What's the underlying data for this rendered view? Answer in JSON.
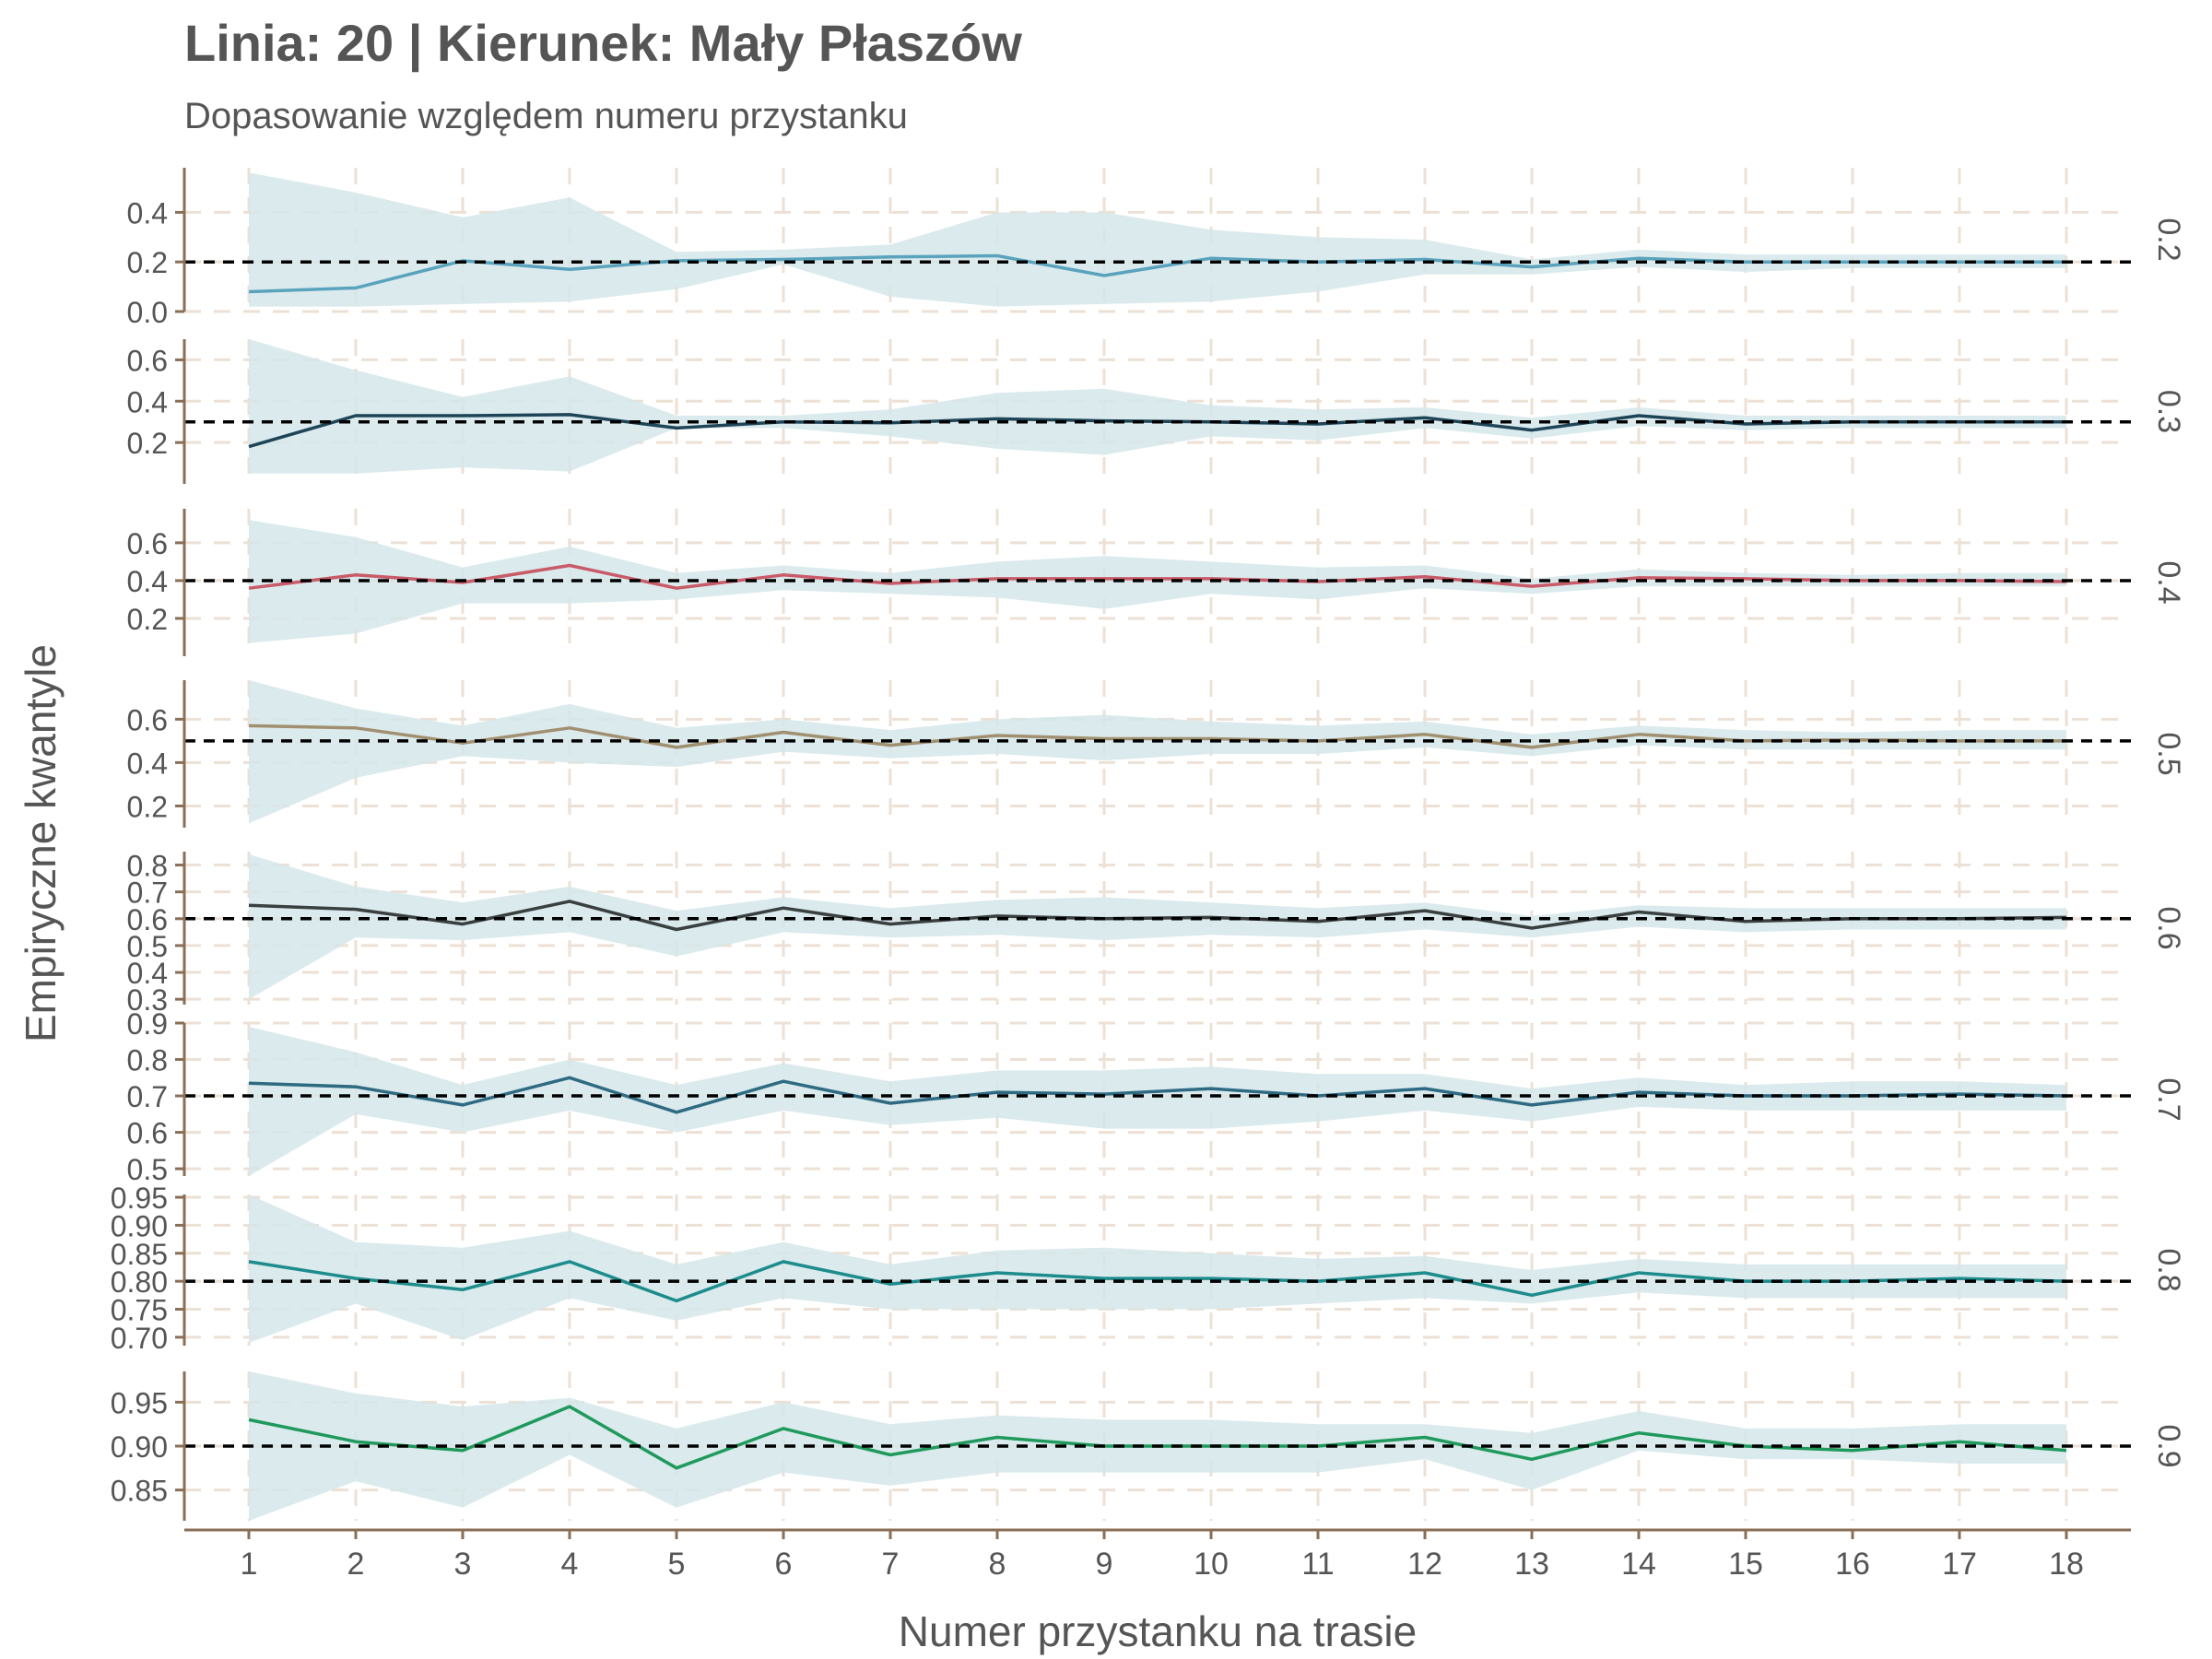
{
  "chart_data": {
    "type": "line",
    "title": "Linia: 20 | Kierunek: Mały Płaszów",
    "subtitle": "Dopasowanie względem numeru przystanku",
    "xlabel": "Numer przystanku na trasie",
    "ylabel": "Empiryczne kwantyle",
    "x": [
      1,
      2,
      3,
      4,
      5,
      6,
      7,
      8,
      9,
      10,
      11,
      12,
      13,
      14,
      15,
      16,
      17,
      18
    ],
    "xlim": [
      1,
      18
    ],
    "grid": true,
    "reference_line_style": "dashed",
    "band_color": "#d5e6ea",
    "grid_color": "#ede0d4",
    "axis_color": "#8a6e55",
    "panels": [
      {
        "facet_label": "0.2",
        "reference": 0.2,
        "color": "#5aa3bd",
        "ylim": [
          0,
          0.58
        ],
        "yticks": [
          0.0,
          0.2,
          0.4
        ],
        "ytick_labels": [
          "0.0",
          "0.2",
          "0.4"
        ],
        "values": [
          0.08,
          0.095,
          0.205,
          0.17,
          0.205,
          0.21,
          0.22,
          0.225,
          0.145,
          0.215,
          0.2,
          0.21,
          0.18,
          0.215,
          0.2,
          0.2,
          0.2,
          0.2
        ],
        "lower": [
          0.02,
          0.02,
          0.03,
          0.04,
          0.09,
          0.19,
          0.06,
          0.02,
          0.03,
          0.04,
          0.08,
          0.15,
          0.15,
          0.18,
          0.16,
          0.175,
          0.175,
          0.175
        ],
        "upper": [
          0.56,
          0.48,
          0.38,
          0.46,
          0.24,
          0.25,
          0.27,
          0.4,
          0.4,
          0.33,
          0.3,
          0.29,
          0.21,
          0.25,
          0.23,
          0.23,
          0.23,
          0.23
        ]
      },
      {
        "facet_label": "0.3",
        "reference": 0.3,
        "color": "#1e4557",
        "ylim": [
          0.0,
          0.7
        ],
        "yticks": [
          0.2,
          0.4,
          0.6
        ],
        "ytick_labels": [
          "0.2",
          "0.4",
          "0.6"
        ],
        "values": [
          0.18,
          0.33,
          0.33,
          0.335,
          0.27,
          0.3,
          0.295,
          0.315,
          0.305,
          0.3,
          0.29,
          0.32,
          0.26,
          0.33,
          0.29,
          0.3,
          0.3,
          0.3
        ],
        "lower": [
          0.05,
          0.05,
          0.08,
          0.06,
          0.27,
          0.27,
          0.23,
          0.17,
          0.14,
          0.23,
          0.21,
          0.27,
          0.22,
          0.28,
          0.26,
          0.27,
          0.27,
          0.27
        ],
        "upper": [
          0.7,
          0.55,
          0.42,
          0.52,
          0.33,
          0.33,
          0.36,
          0.44,
          0.46,
          0.38,
          0.36,
          0.37,
          0.32,
          0.37,
          0.33,
          0.33,
          0.33,
          0.33
        ]
      },
      {
        "facet_label": "0.4",
        "reference": 0.4,
        "color": "#c95b68",
        "ylim": [
          0.0,
          0.78
        ],
        "yticks": [
          0.2,
          0.4,
          0.6
        ],
        "ytick_labels": [
          "0.2",
          "0.4",
          "0.6"
        ],
        "values": [
          0.36,
          0.43,
          0.39,
          0.48,
          0.36,
          0.43,
          0.385,
          0.41,
          0.41,
          0.41,
          0.395,
          0.42,
          0.37,
          0.415,
          0.41,
          0.4,
          0.4,
          0.395
        ],
        "lower": [
          0.07,
          0.12,
          0.28,
          0.28,
          0.3,
          0.35,
          0.33,
          0.31,
          0.25,
          0.33,
          0.3,
          0.36,
          0.33,
          0.37,
          0.37,
          0.37,
          0.37,
          0.37
        ],
        "upper": [
          0.72,
          0.63,
          0.47,
          0.58,
          0.44,
          0.48,
          0.44,
          0.5,
          0.53,
          0.5,
          0.47,
          0.48,
          0.41,
          0.46,
          0.44,
          0.43,
          0.44,
          0.44
        ]
      },
      {
        "facet_label": "0.5",
        "reference": 0.5,
        "color": "#a09070",
        "ylim": [
          0.1,
          0.78
        ],
        "yticks": [
          0.2,
          0.4,
          0.6
        ],
        "ytick_labels": [
          "0.2",
          "0.4",
          "0.6"
        ],
        "values": [
          0.57,
          0.56,
          0.49,
          0.56,
          0.47,
          0.54,
          0.48,
          0.525,
          0.51,
          0.51,
          0.5,
          0.53,
          0.47,
          0.53,
          0.5,
          0.505,
          0.5,
          0.5
        ],
        "lower": [
          0.12,
          0.33,
          0.43,
          0.4,
          0.38,
          0.45,
          0.42,
          0.44,
          0.41,
          0.44,
          0.44,
          0.47,
          0.43,
          0.48,
          0.46,
          0.46,
          0.46,
          0.46
        ],
        "upper": [
          0.78,
          0.65,
          0.57,
          0.67,
          0.56,
          0.6,
          0.55,
          0.6,
          0.62,
          0.59,
          0.57,
          0.59,
          0.53,
          0.57,
          0.55,
          0.54,
          0.55,
          0.55
        ]
      },
      {
        "facet_label": "0.6",
        "reference": 0.6,
        "color": "#3a3f40",
        "ylim": [
          0.28,
          0.85
        ],
        "yticks": [
          0.3,
          0.4,
          0.5,
          0.6,
          0.7,
          0.8
        ],
        "ytick_labels": [
          "0.3",
          "0.4",
          "0.5",
          "0.6",
          "0.7",
          "0.8"
        ],
        "values": [
          0.65,
          0.635,
          0.58,
          0.665,
          0.56,
          0.64,
          0.58,
          0.61,
          0.6,
          0.605,
          0.59,
          0.63,
          0.565,
          0.625,
          0.59,
          0.6,
          0.6,
          0.605
        ],
        "lower": [
          0.3,
          0.53,
          0.52,
          0.55,
          0.46,
          0.55,
          0.53,
          0.54,
          0.52,
          0.54,
          0.53,
          0.56,
          0.53,
          0.57,
          0.55,
          0.56,
          0.56,
          0.56
        ],
        "upper": [
          0.84,
          0.72,
          0.66,
          0.72,
          0.63,
          0.68,
          0.64,
          0.67,
          0.68,
          0.66,
          0.64,
          0.66,
          0.61,
          0.65,
          0.64,
          0.64,
          0.64,
          0.64
        ]
      },
      {
        "facet_label": "0.7",
        "reference": 0.7,
        "color": "#2e6b82",
        "ylim": [
          0.48,
          0.9
        ],
        "yticks": [
          0.5,
          0.6,
          0.7,
          0.8,
          0.9
        ],
        "ytick_labels": [
          "0.5",
          "0.6",
          "0.7",
          "0.8",
          "0.9"
        ],
        "values": [
          0.735,
          0.725,
          0.675,
          0.75,
          0.655,
          0.74,
          0.68,
          0.71,
          0.705,
          0.72,
          0.7,
          0.72,
          0.675,
          0.71,
          0.7,
          0.7,
          0.705,
          0.7
        ],
        "lower": [
          0.48,
          0.65,
          0.6,
          0.66,
          0.6,
          0.66,
          0.62,
          0.64,
          0.61,
          0.61,
          0.63,
          0.66,
          0.63,
          0.67,
          0.66,
          0.66,
          0.66,
          0.66
        ],
        "upper": [
          0.89,
          0.82,
          0.73,
          0.8,
          0.73,
          0.79,
          0.74,
          0.77,
          0.77,
          0.78,
          0.76,
          0.76,
          0.72,
          0.75,
          0.73,
          0.74,
          0.74,
          0.73
        ]
      },
      {
        "facet_label": "0.8",
        "reference": 0.8,
        "color": "#1d8c8c",
        "ylim": [
          0.685,
          0.955
        ],
        "yticks": [
          0.7,
          0.75,
          0.8,
          0.85,
          0.9,
          0.95
        ],
        "ytick_labels": [
          "0.70",
          "0.75",
          "0.80",
          "0.85",
          "0.90",
          "0.95"
        ],
        "values": [
          0.835,
          0.805,
          0.785,
          0.835,
          0.765,
          0.835,
          0.795,
          0.815,
          0.805,
          0.805,
          0.8,
          0.815,
          0.775,
          0.815,
          0.8,
          0.8,
          0.805,
          0.8
        ],
        "lower": [
          0.69,
          0.76,
          0.695,
          0.77,
          0.73,
          0.77,
          0.75,
          0.75,
          0.75,
          0.75,
          0.76,
          0.77,
          0.76,
          0.78,
          0.77,
          0.77,
          0.77,
          0.77
        ],
        "upper": [
          0.955,
          0.87,
          0.86,
          0.89,
          0.83,
          0.87,
          0.83,
          0.855,
          0.86,
          0.85,
          0.84,
          0.845,
          0.82,
          0.84,
          0.83,
          0.83,
          0.83,
          0.83
        ]
      },
      {
        "facet_label": "0.9",
        "reference": 0.9,
        "color": "#1f9a5c",
        "ylim": [
          0.815,
          0.985
        ],
        "yticks": [
          0.85,
          0.9,
          0.95
        ],
        "ytick_labels": [
          "0.85",
          "0.90",
          "0.95"
        ],
        "values": [
          0.93,
          0.905,
          0.895,
          0.945,
          0.875,
          0.92,
          0.89,
          0.91,
          0.9,
          0.9,
          0.9,
          0.91,
          0.885,
          0.915,
          0.9,
          0.895,
          0.905,
          0.895
        ],
        "lower": [
          0.815,
          0.86,
          0.83,
          0.89,
          0.83,
          0.87,
          0.855,
          0.87,
          0.87,
          0.87,
          0.87,
          0.885,
          0.85,
          0.895,
          0.885,
          0.885,
          0.88,
          0.88
        ],
        "upper": [
          0.985,
          0.96,
          0.945,
          0.955,
          0.92,
          0.95,
          0.925,
          0.935,
          0.93,
          0.93,
          0.925,
          0.925,
          0.915,
          0.94,
          0.92,
          0.92,
          0.925,
          0.925
        ]
      }
    ]
  }
}
